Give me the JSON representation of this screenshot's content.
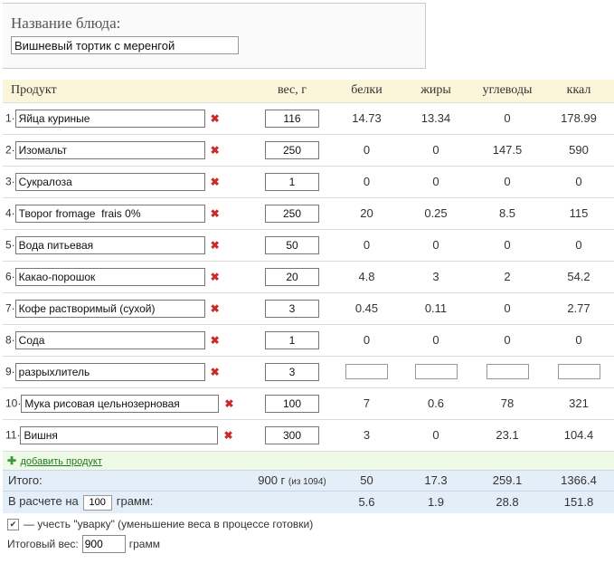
{
  "dish": {
    "label": "Название блюда:",
    "value": "Вишневый тортик с меренгой"
  },
  "table": {
    "headers": {
      "product": "Продукт",
      "weight": "вес, г",
      "protein": "белки",
      "fat": "жиры",
      "carbs": "углеводы",
      "kcal": "ккал"
    },
    "delete_icon": "close-icon",
    "rows": [
      {
        "num": "1·",
        "name": "Яйца куриные",
        "weight": "116",
        "protein": "14.73",
        "fat": "13.34",
        "carbs": "0",
        "kcal": "178.99"
      },
      {
        "num": "2·",
        "name": "Изомальт",
        "weight": "250",
        "protein": "0",
        "fat": "0",
        "carbs": "147.5",
        "kcal": "590"
      },
      {
        "num": "3·",
        "name": "Сукралоза",
        "weight": "1",
        "protein": "0",
        "fat": "0",
        "carbs": "0",
        "kcal": "0"
      },
      {
        "num": "4·",
        "name": "Творог fromage  frais 0%",
        "weight": "250",
        "protein": "20",
        "fat": "0.25",
        "carbs": "8.5",
        "kcal": "115"
      },
      {
        "num": "5·",
        "name": "Вода питьевая",
        "weight": "50",
        "protein": "0",
        "fat": "0",
        "carbs": "0",
        "kcal": "0"
      },
      {
        "num": "6·",
        "name": "Какао-порошок",
        "weight": "20",
        "protein": "4.8",
        "fat": "3",
        "carbs": "2",
        "kcal": "54.2"
      },
      {
        "num": "7·",
        "name": "Кофе растворимый (сухой)",
        "weight": "3",
        "protein": "0.45",
        "fat": "0.11",
        "carbs": "0",
        "kcal": "2.77"
      },
      {
        "num": "8·",
        "name": "Сода",
        "weight": "1",
        "protein": "0",
        "fat": "0",
        "carbs": "0",
        "kcal": "0"
      },
      {
        "num": "9·",
        "name": "разрыхлитель",
        "weight": "3",
        "protein": "",
        "fat": "",
        "carbs": "",
        "kcal": ""
      },
      {
        "num": "10·",
        "name": "Мука рисовая цельнозерновая",
        "weight": "100",
        "protein": "7",
        "fat": "0.6",
        "carbs": "78",
        "kcal": "321"
      },
      {
        "num": "11·",
        "name": "Вишня",
        "weight": "300",
        "protein": "3",
        "fat": "0",
        "carbs": "23.1",
        "kcal": "104.4"
      }
    ],
    "add_icon": "plus-icon",
    "add_label": "добавить продукт",
    "total": {
      "label": "Итого:",
      "weight": "900 г",
      "weight_note": "(из 1094)",
      "protein": "50",
      "fat": "17.3",
      "carbs": "259.1",
      "kcal": "1366.4"
    },
    "per": {
      "label_before": "В расчете на",
      "amount": "100",
      "label_after": "грамм:",
      "protein": "5.6",
      "fat": "1.9",
      "carbs": "28.8",
      "kcal": "151.8"
    }
  },
  "options": {
    "checkbox_checked": true,
    "check_glyph": "✔",
    "boiling_label": "— учесть \"уварку\" (уменьшение веса в процессе готовки)",
    "final_weight_label": "Итоговый вес:",
    "final_weight_value": "900",
    "final_weight_unit": "грамм"
  },
  "colors": {
    "header_bg": "#fbf5d9",
    "add_row_bg": "#eef9e6",
    "totals_bg": "#e4eef8",
    "delete_red": "#cc2a2a",
    "add_green": "#3a9a3a"
  }
}
